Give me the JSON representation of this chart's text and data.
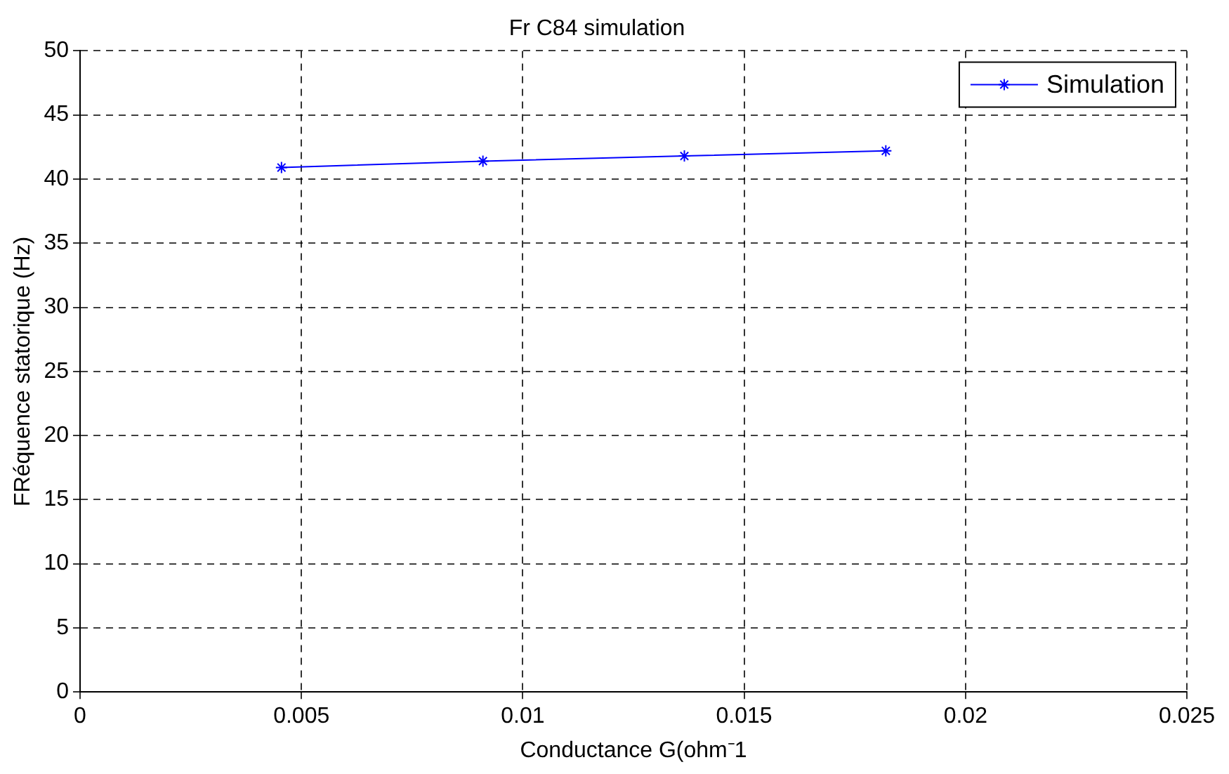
{
  "chart_data": {
    "type": "line",
    "title": "Fr C84 simulation",
    "xlabel": "Conductance G(ohm⁻1",
    "ylabel": "FRéquence statorique (Hz)",
    "x": [
      0.00455,
      0.0091,
      0.01365,
      0.0182
    ],
    "series": [
      {
        "name": "Simulation",
        "color": "#0000ff",
        "values": [
          40.9,
          41.4,
          41.8,
          42.2
        ]
      }
    ],
    "xlim": [
      0,
      0.025
    ],
    "xticks": [
      0,
      0.005,
      0.01,
      0.015,
      0.02,
      0.025
    ],
    "ylim": [
      0,
      50
    ],
    "yticks": [
      0,
      5,
      10,
      15,
      20,
      25,
      30,
      35,
      40,
      45,
      50
    ],
    "grid": true,
    "legend": "top right",
    "marker": "cross",
    "line_style": "solid"
  }
}
